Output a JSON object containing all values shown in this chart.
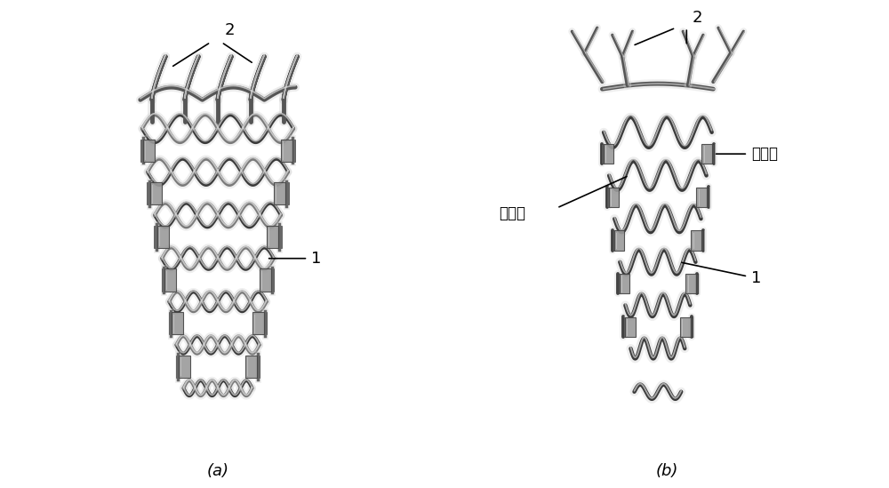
{
  "fig_width": 10.0,
  "fig_height": 5.49,
  "dpi": 100,
  "bg_color": "#ffffff",
  "caption_a": "(a)",
  "caption_b": "(b)",
  "caption_fontsize": 13,
  "label_1": "1",
  "label_2": "2",
  "label_zhijuiti": "支撑体",
  "label_lianjieti": "连接体",
  "stent_gray_dark": "#2a2a2a",
  "stent_gray_mid": "#666666",
  "stent_gray_light": "#b0b0b0",
  "stent_gray_highlight": "#d8d8d8",
  "block_dark": "#555555",
  "block_mid": "#888888",
  "block_light": "#bbbbbb"
}
